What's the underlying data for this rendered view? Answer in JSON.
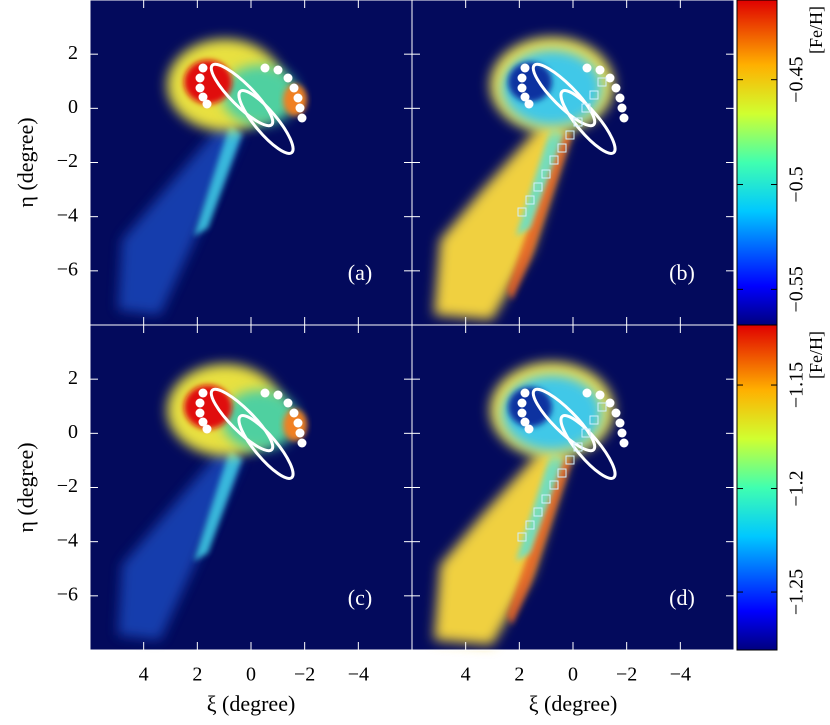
{
  "chart_data": {
    "type": "density-map",
    "xlabel": "ξ (degree)",
    "ylabel": "η (degree)",
    "xlim": [
      6,
      -6
    ],
    "ylim": [
      -8,
      4
    ],
    "xticks": [
      4,
      2,
      0,
      {
        "value": -2,
        "label": "−2"
      },
      {
        "value": -4,
        "label": "−4"
      }
    ],
    "yticks": [
      2,
      0,
      {
        "value": -2,
        "label": "−2"
      },
      {
        "value": -4,
        "label": "−4"
      },
      {
        "value": -6,
        "label": "−6"
      }
    ],
    "panels": [
      {
        "label": "(a)",
        "map": "rich"
      },
      {
        "label": "(b)",
        "map": "poor"
      },
      {
        "label": "(c)",
        "map": "rich"
      },
      {
        "label": "(d)",
        "map": "poor"
      }
    ],
    "colorbars": [
      {
        "label": "[Fe/H]",
        "lim": [
          -0.567,
          -0.412
        ],
        "ticks": [
          {
            "value": -0.45,
            "label": "−0.45"
          },
          {
            "value": -0.5,
            "label": "−0.5"
          },
          {
            "value": -0.55,
            "label": "−0.55"
          }
        ]
      },
      {
        "label": "[Fe/H]",
        "lim": [
          -1.278,
          -1.121
        ],
        "ticks": [
          {
            "value": -1.15,
            "label": "−1.15"
          },
          {
            "value": -1.2,
            "label": "−1.2"
          },
          {
            "value": -1.25,
            "label": "−1.25"
          }
        ]
      }
    ]
  }
}
